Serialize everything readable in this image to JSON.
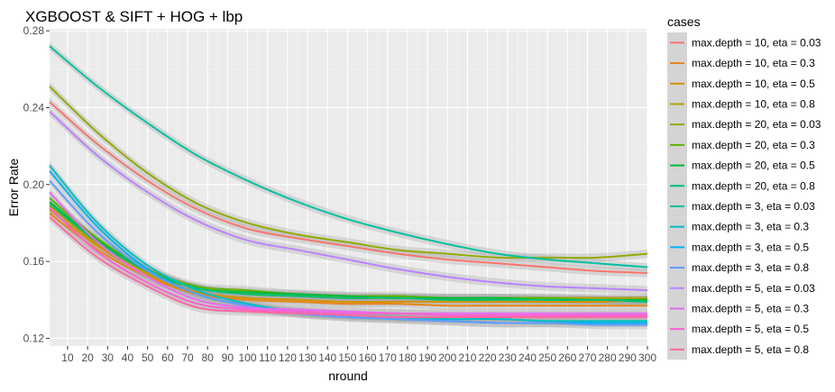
{
  "chart_data": {
    "type": "line",
    "title": "XGBOOST & SIFT + HOG + lbp",
    "xlabel": "nround",
    "ylabel": "Error Rate",
    "xlim": [
      1,
      300
    ],
    "ylim": [
      0.116,
      0.281
    ],
    "x_ticks": [
      10,
      20,
      30,
      40,
      50,
      60,
      70,
      80,
      90,
      100,
      110,
      120,
      130,
      140,
      150,
      160,
      170,
      180,
      190,
      200,
      210,
      220,
      230,
      240,
      250,
      260,
      270,
      280,
      290,
      300
    ],
    "y_ticks": [
      0.12,
      0.16,
      0.2,
      0.24,
      0.28
    ],
    "y_tick_labels": [
      "0.12",
      "0.16",
      "0.20",
      "0.24",
      "0.28"
    ],
    "grid": true,
    "legend_position": "right",
    "legend_title": "cases",
    "x": [
      1,
      25,
      50,
      75,
      100,
      125,
      150,
      175,
      200,
      225,
      250,
      275,
      300
    ],
    "series": [
      {
        "name": "max.depth = 10, eta = 0.03",
        "color": "#F8766D",
        "values": [
          0.243,
          0.221,
          0.202,
          0.187,
          0.177,
          0.172,
          0.168,
          0.164,
          0.161,
          0.159,
          0.157,
          0.155,
          0.154
        ]
      },
      {
        "name": "max.depth = 10, eta = 0.3",
        "color": "#E7861B",
        "values": [
          0.185,
          0.166,
          0.152,
          0.143,
          0.14,
          0.139,
          0.138,
          0.138,
          0.137,
          0.137,
          0.137,
          0.137,
          0.137
        ]
      },
      {
        "name": "max.depth = 10, eta = 0.5",
        "color": "#D39200",
        "values": [
          0.187,
          0.168,
          0.153,
          0.144,
          0.141,
          0.14,
          0.139,
          0.139,
          0.139,
          0.139,
          0.139,
          0.139,
          0.14
        ]
      },
      {
        "name": "max.depth = 10, eta = 0.8",
        "color": "#B79F00",
        "values": [
          0.189,
          0.169,
          0.154,
          0.146,
          0.143,
          0.142,
          0.141,
          0.141,
          0.141,
          0.141,
          0.141,
          0.141,
          0.141
        ]
      },
      {
        "name": "max.depth = 20, eta = 0.03",
        "color": "#93AA00",
        "values": [
          0.251,
          0.227,
          0.206,
          0.19,
          0.18,
          0.174,
          0.17,
          0.166,
          0.164,
          0.162,
          0.162,
          0.162,
          0.164
        ]
      },
      {
        "name": "max.depth = 20, eta = 0.3",
        "color": "#5EB300",
        "values": [
          0.193,
          0.172,
          0.156,
          0.147,
          0.145,
          0.143,
          0.142,
          0.142,
          0.141,
          0.141,
          0.141,
          0.14,
          0.14
        ]
      },
      {
        "name": "max.depth = 20, eta = 0.5",
        "color": "#00BA38",
        "values": [
          0.191,
          0.171,
          0.155,
          0.146,
          0.144,
          0.143,
          0.142,
          0.141,
          0.141,
          0.141,
          0.14,
          0.14,
          0.14
        ]
      },
      {
        "name": "max.depth = 20, eta = 0.8",
        "color": "#00BF74",
        "values": [
          0.19,
          0.17,
          0.155,
          0.146,
          0.143,
          0.142,
          0.141,
          0.141,
          0.14,
          0.14,
          0.14,
          0.14,
          0.139
        ]
      },
      {
        "name": "max.depth = 3, eta = 0.03",
        "color": "#00C19F",
        "values": [
          0.272,
          0.251,
          0.232,
          0.215,
          0.202,
          0.191,
          0.182,
          0.175,
          0.169,
          0.164,
          0.161,
          0.159,
          0.157
        ]
      },
      {
        "name": "max.depth = 3, eta = 0.3",
        "color": "#00BFC4",
        "values": [
          0.21,
          0.18,
          0.158,
          0.145,
          0.138,
          0.134,
          0.132,
          0.131,
          0.13,
          0.13,
          0.129,
          0.129,
          0.129
        ]
      },
      {
        "name": "max.depth = 3, eta = 0.5",
        "color": "#00B4F0",
        "values": [
          0.207,
          0.178,
          0.156,
          0.143,
          0.137,
          0.133,
          0.131,
          0.13,
          0.129,
          0.128,
          0.128,
          0.128,
          0.128
        ]
      },
      {
        "name": "max.depth = 3, eta = 0.8",
        "color": "#619CFF",
        "values": [
          0.202,
          0.175,
          0.155,
          0.143,
          0.137,
          0.133,
          0.131,
          0.13,
          0.129,
          0.128,
          0.128,
          0.127,
          0.127
        ]
      },
      {
        "name": "max.depth = 5, eta = 0.03",
        "color": "#B983FF",
        "values": [
          0.238,
          0.215,
          0.196,
          0.181,
          0.171,
          0.166,
          0.161,
          0.156,
          0.152,
          0.149,
          0.147,
          0.146,
          0.145
        ]
      },
      {
        "name": "max.depth = 5, eta = 0.3",
        "color": "#E76BF3",
        "values": [
          0.196,
          0.17,
          0.152,
          0.14,
          0.136,
          0.135,
          0.134,
          0.133,
          0.133,
          0.133,
          0.133,
          0.133,
          0.133
        ]
      },
      {
        "name": "max.depth = 5, eta = 0.5",
        "color": "#FD61D1",
        "values": [
          0.188,
          0.165,
          0.149,
          0.138,
          0.135,
          0.134,
          0.133,
          0.133,
          0.132,
          0.132,
          0.132,
          0.132,
          0.132
        ]
      },
      {
        "name": "max.depth = 5, eta = 0.8",
        "color": "#FF67A4",
        "values": [
          0.183,
          0.162,
          0.147,
          0.136,
          0.134,
          0.133,
          0.132,
          0.131,
          0.131,
          0.131,
          0.131,
          0.131,
          0.131
        ]
      }
    ]
  }
}
